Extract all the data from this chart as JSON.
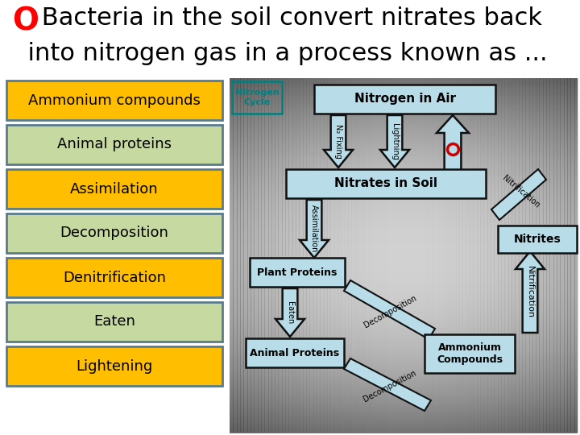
{
  "title_o": "O",
  "title_line1": " Bacteria in the soil convert nitrates back",
  "title_line2": "  into nitrogen gas in a process known as ...",
  "title_o_color": "#ff0000",
  "title_text_color": "#000000",
  "bg_color": "#ffffff",
  "left_items": [
    {
      "label": "Ammonium compounds",
      "bg": "#ffbf00",
      "border": "#5b7b8c"
    },
    {
      "label": "Animal proteins",
      "bg": "#c5d9a0",
      "border": "#5b7b8c"
    },
    {
      "label": "Assimilation",
      "bg": "#ffbf00",
      "border": "#5b7b8c"
    },
    {
      "label": "Decomposition",
      "bg": "#c5d9a0",
      "border": "#5b7b8c"
    },
    {
      "label": "Denitrification",
      "bg": "#ffbf00",
      "border": "#5b7b8c"
    },
    {
      "label": "Eaten",
      "bg": "#c5d9a0",
      "border": "#5b7b8c"
    },
    {
      "label": "Lightening",
      "bg": "#ffbf00",
      "border": "#5b7b8c"
    }
  ],
  "diag_arrow_color": "#b8dce8",
  "diag_arrow_border": "#333333",
  "diag_box_color": "#b8dce8",
  "diag_box_border": "#111111",
  "nitrogen_cycle_label": "Nitrogen\nCycle",
  "nitrogen_cycle_color": "#008080",
  "nitrogen_in_air": "Nitrogen in Air",
  "nitrates_in_soil": "Nitrates in Soil",
  "nitrites": "Nitrites",
  "plant_proteins": "Plant Proteins",
  "animal_proteins_diag": "Animal Proteins",
  "ammonium_compounds_diag": "Ammonium\nCompounds",
  "n2_fixing": "N₂ Fixing",
  "lightning": "Lightning",
  "assimilation_diag": "Assimilation",
  "decomposition_diag": "Decomposition",
  "eaten_diag": "Eaten",
  "nitrification": "Nitrification",
  "nitrification2": "Nitrification",
  "denitrification_marker_color": "#cc0000"
}
